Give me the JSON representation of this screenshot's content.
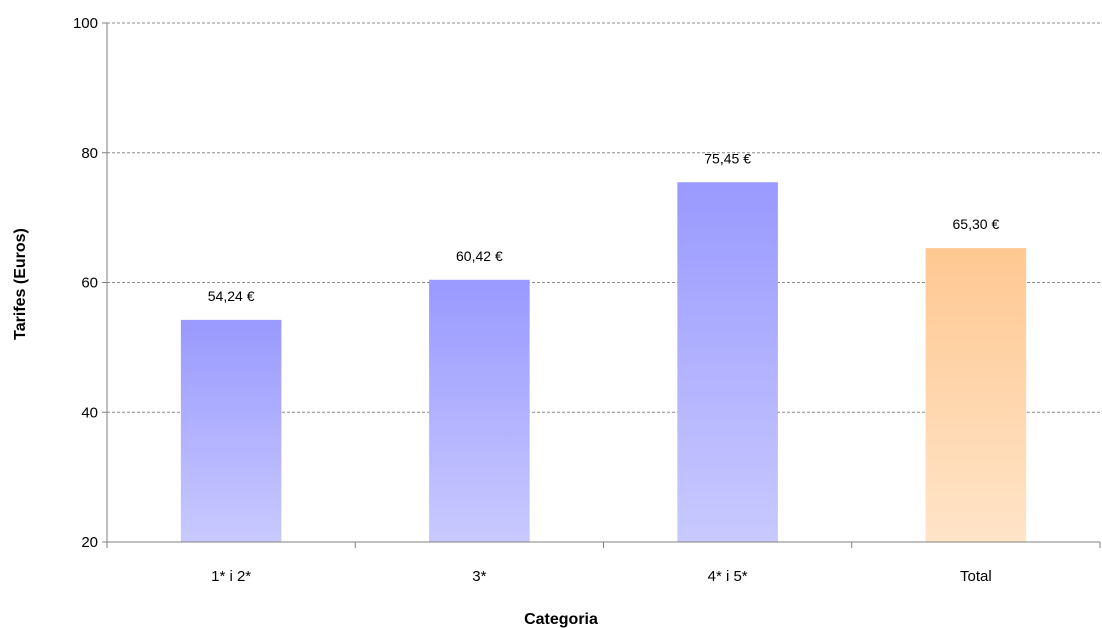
{
  "chart_data": {
    "type": "bar",
    "xlabel": "Categoria",
    "ylabel": "Tarifes (Euros)",
    "categories": [
      "1* i 2*",
      "3*",
      "4* i 5*",
      "Total"
    ],
    "values": [
      54.24,
      60.42,
      75.45,
      65.3
    ],
    "value_labels": [
      "54,24 €",
      "60,42 €",
      "75,45 €",
      "65,30 €"
    ],
    "ylim": [
      20,
      100
    ],
    "yticks": [
      20,
      40,
      60,
      80,
      100
    ],
    "grid": true,
    "legend": "none",
    "colors": {
      "series_top": "#9999ff",
      "series_bottom": "#c9c9ff",
      "total_top": "#ffc892",
      "total_bottom": "#ffe4c8"
    }
  }
}
